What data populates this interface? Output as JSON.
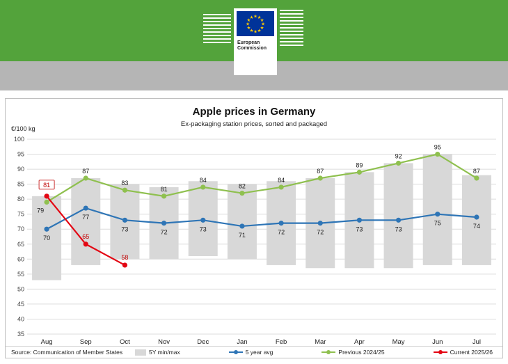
{
  "header": {
    "logo_line1": "European",
    "logo_line2": "Commission"
  },
  "chart": {
    "title": "Apple prices in Germany",
    "subtitle": "Ex-packaging station prices, sorted and packaged",
    "y_axis_unit": "€/100 kg",
    "source": "Source: Communication of Member States"
  },
  "chart_data": {
    "type": "line",
    "title": "Apple prices in Germany",
    "subtitle": "Ex-packaging station prices, sorted and packaged",
    "ylabel": "€/100 kg",
    "categories": [
      "Aug",
      "Sep",
      "Oct",
      "Nov",
      "Dec",
      "Jan",
      "Feb",
      "Mar",
      "Apr",
      "May",
      "Jun",
      "Jul"
    ],
    "ylim": [
      35,
      100
    ],
    "ytick_step": 5,
    "grid": true,
    "legend_position": "bottom",
    "series": [
      {
        "name": "5Y min/max",
        "type": "range-bar",
        "color": "#d8d8d8",
        "min": [
          53,
          58,
          60,
          60,
          61,
          60,
          58,
          57,
          57,
          57,
          58,
          58
        ],
        "max": [
          81,
          87,
          85,
          84,
          86,
          85,
          86,
          87,
          89,
          92,
          95,
          88
        ]
      },
      {
        "name": "5 year avg",
        "type": "line",
        "color": "#2e75b6",
        "values": [
          70,
          77,
          73,
          72,
          73,
          71,
          72,
          72,
          73,
          73,
          75,
          74
        ]
      },
      {
        "name": "Previous 2024/25",
        "type": "line",
        "color": "#8fc04f",
        "values": [
          79,
          87,
          83,
          81,
          84,
          82,
          84,
          87,
          89,
          92,
          95,
          87
        ]
      },
      {
        "name": "Current 2025/26",
        "type": "line",
        "color": "#e30613",
        "values": [
          81,
          65,
          58
        ]
      }
    ]
  }
}
